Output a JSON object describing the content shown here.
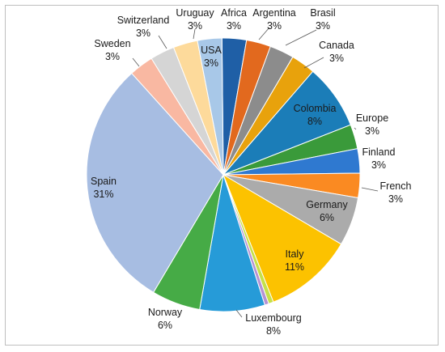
{
  "chart_data": {
    "type": "pie",
    "title": "",
    "slices": [
      {
        "name": "Africa",
        "value": 3,
        "label": "3%",
        "color": "#1F5FA6"
      },
      {
        "name": "Argentina",
        "value": 3,
        "label": "3%",
        "color": "#E2691E"
      },
      {
        "name": "Brasil",
        "value": 3,
        "label": "3%",
        "color": "#8C8C8C"
      },
      {
        "name": "Canada",
        "value": 3,
        "label": "3%",
        "color": "#E8A20C"
      },
      {
        "name": "Colombia",
        "value": 8,
        "label": "8%",
        "color": "#1B7DB8"
      },
      {
        "name": "Europe",
        "value": 3,
        "label": "3%",
        "color": "#3A9A3A"
      },
      {
        "name": "Finland",
        "value": 3,
        "label": "3%",
        "color": "#2F79D0"
      },
      {
        "name": "French",
        "value": 3,
        "label": "3%",
        "color": "#FA8A22"
      },
      {
        "name": "Germany",
        "value": 6,
        "label": "6%",
        "color": "#ABABAB"
      },
      {
        "name": "Italy",
        "value": 11,
        "label": "11%",
        "color": "#FCC200"
      },
      {
        "name": "",
        "value": 0.6,
        "label": "",
        "color": "#C6E04A"
      },
      {
        "name": "",
        "value": 0.5,
        "label": "",
        "color": "#B593D4"
      },
      {
        "name": "Luxembourg",
        "value": 8,
        "label": "8%",
        "color": "#269BD8"
      },
      {
        "name": "Norway",
        "value": 6,
        "label": "6%",
        "color": "#46AB46"
      },
      {
        "name": "Spain",
        "value": 31,
        "label": "31%",
        "color": "#A7BDE2"
      },
      {
        "name": "Sweden",
        "value": 3,
        "label": "3%",
        "color": "#F9B8A2"
      },
      {
        "name": "Switzerland",
        "value": 3,
        "label": "3%",
        "color": "#D5D5D5"
      },
      {
        "name": "Uruguay",
        "value": 3,
        "label": "3%",
        "color": "#FDDA9B"
      },
      {
        "name": "USA",
        "value": 3,
        "label": "3%",
        "color": "#A8C8E8"
      }
    ]
  }
}
